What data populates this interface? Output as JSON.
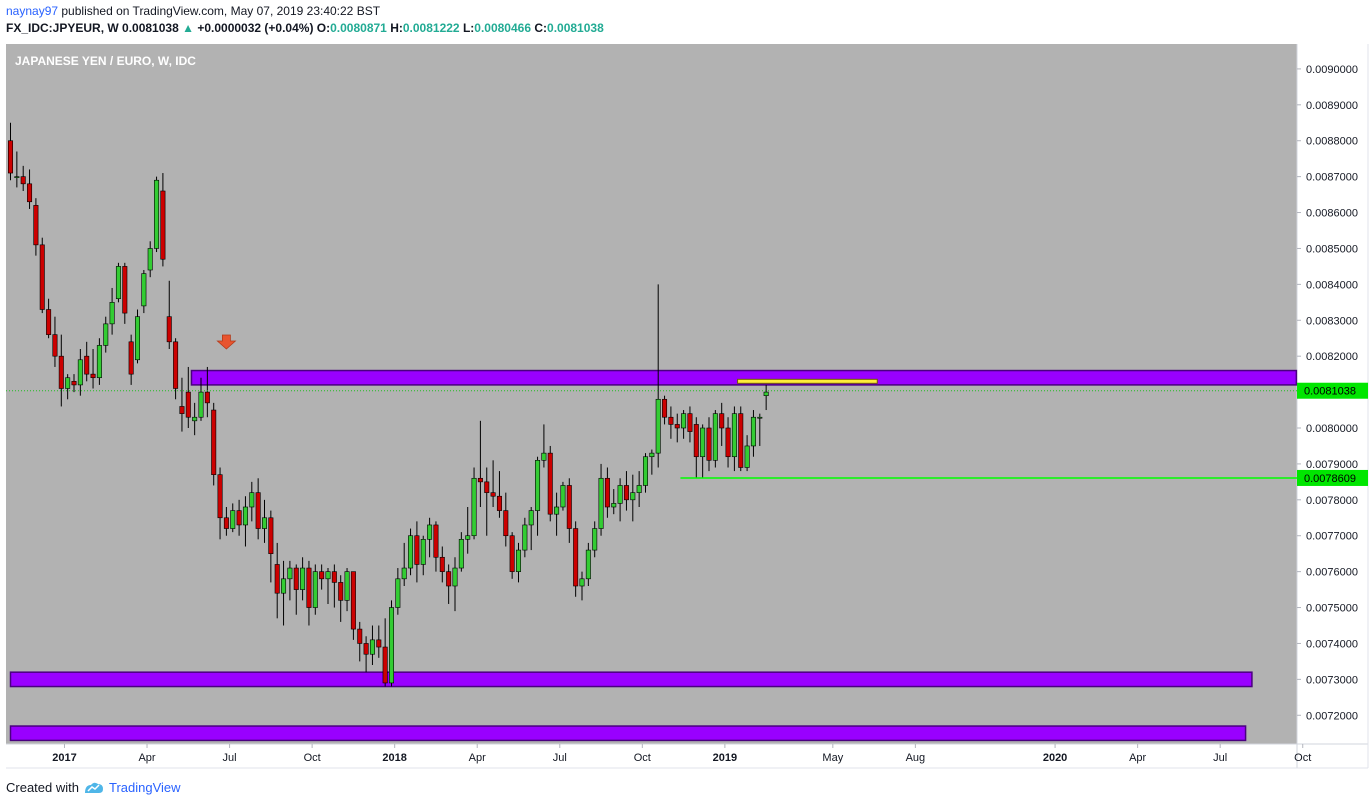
{
  "header": {
    "user": "naynay97",
    "published_text": " published on TradingView.com, May 07, 2019 23:40:22 BST",
    "symbol": "FX_IDC:JPYEUR, W",
    "last": "0.0081038",
    "change_arrow": "▲",
    "change": "+0.0000032 (+0.04%)",
    "o_label": "O:",
    "o_value": "0.0080871",
    "h_label": "H:",
    "h_value": "0.0081222",
    "l_label": "L:",
    "l_value": "0.0080466",
    "c_label": "C:",
    "c_value": "0.0081038"
  },
  "chart_data": {
    "type": "candlestick",
    "title": "JAPANESE YEN / EURO, W, IDC",
    "ylim": [
      0.00712,
      0.0091
    ],
    "y_ticks": [
      "0.0072000",
      "0.0073000",
      "0.0074000",
      "0.0075000",
      "0.0076000",
      "0.0077000",
      "0.0078000",
      "0.0079000",
      "0.0080000",
      "0.0081000",
      "0.0082000",
      "0.0083000",
      "0.0084000",
      "0.0085000",
      "0.0086000",
      "0.0087000",
      "0.0088000",
      "0.0089000",
      "0.0090000"
    ],
    "x_ticks": [
      {
        "label": "2017",
        "bold": true,
        "week": 8.5
      },
      {
        "label": "Apr",
        "bold": false,
        "week": 21.5
      },
      {
        "label": "Jul",
        "bold": false,
        "week": 34.5
      },
      {
        "label": "Oct",
        "bold": false,
        "week": 47.5
      },
      {
        "label": "2018",
        "bold": true,
        "week": 60.5
      },
      {
        "label": "Apr",
        "bold": false,
        "week": 73.5
      },
      {
        "label": "Jul",
        "bold": false,
        "week": 86.5
      },
      {
        "label": "Oct",
        "bold": false,
        "week": 99.5
      },
      {
        "label": "2019",
        "bold": true,
        "week": 112.5
      },
      {
        "label": "May",
        "bold": false,
        "week": 129.5
      },
      {
        "label": "Aug",
        "bold": false,
        "week": 142.5
      },
      {
        "label": "2020",
        "bold": true,
        "week": 164.5
      },
      {
        "label": "Apr",
        "bold": false,
        "week": 177.5
      },
      {
        "label": "Jul",
        "bold": false,
        "week": 190.5
      },
      {
        "label": "Oct",
        "bold": false,
        "week": 203.5
      }
    ],
    "last_price": "0.0081038",
    "support_price": "0.0078609",
    "zones": [
      {
        "low": 0.00812,
        "high": 0.00816,
        "week_start": 28.5,
        "week_end": 202.5
      },
      {
        "low": 0.00728,
        "high": 0.00732,
        "week_start": 0,
        "week_end": 195.5
      },
      {
        "low": 0.00713,
        "high": 0.00717,
        "week_start": 0,
        "week_end": 194.5
      }
    ],
    "yellow_zone": {
      "low": 0.00812,
      "high": 0.00813,
      "week_start": 114.5,
      "week_end": 136.5
    },
    "support_line_start_week": 105.5,
    "arrow": {
      "week": 34,
      "price": 0.00822
    },
    "candles": [
      [
        0.0088,
        0.00885,
        0.00869,
        0.00871
      ],
      [
        0.0087,
        0.00877,
        0.00867,
        0.0087
      ],
      [
        0.0087,
        0.00873,
        0.00866,
        0.00868
      ],
      [
        0.00868,
        0.00872,
        0.00861,
        0.00863
      ],
      [
        0.00862,
        0.00864,
        0.00848,
        0.00851
      ],
      [
        0.00851,
        0.00853,
        0.00832,
        0.00833
      ],
      [
        0.00833,
        0.00836,
        0.00825,
        0.00826
      ],
      [
        0.00826,
        0.00831,
        0.00817,
        0.0082
      ],
      [
        0.0082,
        0.00826,
        0.00806,
        0.00811
      ],
      [
        0.00811,
        0.00815,
        0.00808,
        0.00814
      ],
      [
        0.00813,
        0.00815,
        0.0081,
        0.00812
      ],
      [
        0.00812,
        0.00822,
        0.00809,
        0.00819
      ],
      [
        0.0082,
        0.00824,
        0.00813,
        0.00815
      ],
      [
        0.00815,
        0.00822,
        0.00811,
        0.00814
      ],
      [
        0.00814,
        0.00825,
        0.00812,
        0.00823
      ],
      [
        0.00823,
        0.00831,
        0.00821,
        0.00829
      ],
      [
        0.00829,
        0.00839,
        0.00826,
        0.00835
      ],
      [
        0.00836,
        0.00846,
        0.00835,
        0.00845
      ],
      [
        0.00845,
        0.00846,
        0.00829,
        0.00832
      ],
      [
        0.00824,
        0.00826,
        0.00812,
        0.00815
      ],
      [
        0.00819,
        0.00833,
        0.00818,
        0.00831
      ],
      [
        0.00834,
        0.00844,
        0.00832,
        0.00843
      ],
      [
        0.00844,
        0.00852,
        0.00842,
        0.0085
      ],
      [
        0.0085,
        0.0087,
        0.00849,
        0.00869
      ],
      [
        0.00866,
        0.00871,
        0.00845,
        0.00847
      ],
      [
        0.00831,
        0.00841,
        0.00822,
        0.00824
      ],
      [
        0.00824,
        0.00825,
        0.00808,
        0.00811
      ],
      [
        0.00806,
        0.00814,
        0.00799,
        0.00804
      ],
      [
        0.0081,
        0.00817,
        0.008,
        0.00803
      ],
      [
        0.00802,
        0.00807,
        0.00798,
        0.00803
      ],
      [
        0.00803,
        0.00814,
        0.00802,
        0.0081
      ],
      [
        0.0081,
        0.00817,
        0.00803,
        0.00807
      ],
      [
        0.00805,
        0.00807,
        0.00784,
        0.00787
      ],
      [
        0.00787,
        0.00789,
        0.00769,
        0.00775
      ],
      [
        0.00775,
        0.00778,
        0.0077,
        0.00772
      ],
      [
        0.00772,
        0.00779,
        0.00771,
        0.00777
      ],
      [
        0.00777,
        0.0078,
        0.0077,
        0.00773
      ],
      [
        0.00773,
        0.00781,
        0.00767,
        0.00778
      ],
      [
        0.00778,
        0.00785,
        0.00774,
        0.00782
      ],
      [
        0.00782,
        0.00786,
        0.00769,
        0.00772
      ],
      [
        0.00772,
        0.0078,
        0.00768,
        0.00775
      ],
      [
        0.00775,
        0.00777,
        0.00757,
        0.00765
      ],
      [
        0.00762,
        0.00768,
        0.00747,
        0.00754
      ],
      [
        0.00754,
        0.00763,
        0.00745,
        0.00758
      ],
      [
        0.00758,
        0.00763,
        0.00752,
        0.00761
      ],
      [
        0.00761,
        0.00762,
        0.00748,
        0.00755
      ],
      [
        0.00755,
        0.00764,
        0.00752,
        0.00761
      ],
      [
        0.00761,
        0.00763,
        0.00745,
        0.0075
      ],
      [
        0.0075,
        0.00762,
        0.00748,
        0.0076
      ],
      [
        0.0076,
        0.00762,
        0.00755,
        0.00758
      ],
      [
        0.00758,
        0.00761,
        0.00751,
        0.0076
      ],
      [
        0.0076,
        0.00762,
        0.0075,
        0.00757
      ],
      [
        0.00757,
        0.00759,
        0.00746,
        0.00752
      ],
      [
        0.00752,
        0.00761,
        0.00749,
        0.0076
      ],
      [
        0.0076,
        0.0076,
        0.00741,
        0.00744
      ],
      [
        0.00744,
        0.00746,
        0.00735,
        0.0074
      ],
      [
        0.0074,
        0.00742,
        0.00732,
        0.00737
      ],
      [
        0.00737,
        0.00745,
        0.00734,
        0.00741
      ],
      [
        0.00741,
        0.00745,
        0.00736,
        0.00739
      ],
      [
        0.00739,
        0.00747,
        0.00728,
        0.00729
      ],
      [
        0.00729,
        0.00752,
        0.00728,
        0.0075
      ],
      [
        0.0075,
        0.00761,
        0.00748,
        0.00758
      ],
      [
        0.00758,
        0.00768,
        0.00756,
        0.00761
      ],
      [
        0.00761,
        0.00772,
        0.00759,
        0.0077
      ],
      [
        0.0077,
        0.00774,
        0.00757,
        0.00762
      ],
      [
        0.00762,
        0.0077,
        0.00759,
        0.00769
      ],
      [
        0.00769,
        0.00775,
        0.00764,
        0.00773
      ],
      [
        0.00773,
        0.00774,
        0.0076,
        0.00764
      ],
      [
        0.00764,
        0.00767,
        0.00757,
        0.0076
      ],
      [
        0.0076,
        0.00762,
        0.00751,
        0.00756
      ],
      [
        0.00756,
        0.00764,
        0.00749,
        0.00761
      ],
      [
        0.00761,
        0.00771,
        0.0076,
        0.00769
      ],
      [
        0.00769,
        0.00778,
        0.00765,
        0.0077
      ],
      [
        0.0077,
        0.00789,
        0.00769,
        0.00786
      ],
      [
        0.00786,
        0.00802,
        0.00778,
        0.00785
      ],
      [
        0.00785,
        0.00789,
        0.0077,
        0.00782
      ],
      [
        0.00782,
        0.00791,
        0.00778,
        0.00781
      ],
      [
        0.00781,
        0.00788,
        0.00775,
        0.00777
      ],
      [
        0.00777,
        0.00782,
        0.00767,
        0.0077
      ],
      [
        0.0077,
        0.00771,
        0.00758,
        0.0076
      ],
      [
        0.0076,
        0.00768,
        0.00757,
        0.00766
      ],
      [
        0.00766,
        0.00775,
        0.00764,
        0.00773
      ],
      [
        0.00773,
        0.00778,
        0.00766,
        0.00777
      ],
      [
        0.00777,
        0.00792,
        0.0077,
        0.00791
      ],
      [
        0.00791,
        0.00801,
        0.00789,
        0.00793
      ],
      [
        0.00793,
        0.00795,
        0.00774,
        0.00776
      ],
      [
        0.00776,
        0.00782,
        0.0077,
        0.00778
      ],
      [
        0.00778,
        0.00785,
        0.00777,
        0.00784
      ],
      [
        0.00784,
        0.00786,
        0.00768,
        0.00772
      ],
      [
        0.00772,
        0.00774,
        0.00753,
        0.00756
      ],
      [
        0.00756,
        0.0076,
        0.00752,
        0.00758
      ],
      [
        0.00758,
        0.00768,
        0.00756,
        0.00766
      ],
      [
        0.00766,
        0.00774,
        0.00764,
        0.00772
      ],
      [
        0.00772,
        0.0079,
        0.0077,
        0.00786
      ],
      [
        0.00786,
        0.00789,
        0.00775,
        0.00778
      ],
      [
        0.00778,
        0.00783,
        0.00776,
        0.00779
      ],
      [
        0.00779,
        0.00786,
        0.00774,
        0.00784
      ],
      [
        0.00784,
        0.00788,
        0.00777,
        0.0078
      ],
      [
        0.0078,
        0.00787,
        0.00774,
        0.00782
      ],
      [
        0.00782,
        0.00788,
        0.00778,
        0.00784
      ],
      [
        0.00784,
        0.00793,
        0.00782,
        0.00792
      ],
      [
        0.00792,
        0.00794,
        0.00787,
        0.00793
      ],
      [
        0.00793,
        0.0084,
        0.00789,
        0.00808
      ],
      [
        0.00808,
        0.00809,
        0.00801,
        0.00803
      ],
      [
        0.00803,
        0.00806,
        0.00797,
        0.00801
      ],
      [
        0.00801,
        0.00804,
        0.00796,
        0.008
      ],
      [
        0.008,
        0.00805,
        0.00797,
        0.00804
      ],
      [
        0.00804,
        0.00806,
        0.00796,
        0.00799
      ],
      [
        0.00801,
        0.00803,
        0.00786,
        0.00792
      ],
      [
        0.00792,
        0.00801,
        0.00786,
        0.008
      ],
      [
        0.008,
        0.00803,
        0.00788,
        0.00791
      ],
      [
        0.00791,
        0.00805,
        0.00789,
        0.00804
      ],
      [
        0.00804,
        0.00807,
        0.00795,
        0.008
      ],
      [
        0.008,
        0.00803,
        0.00789,
        0.00792
      ],
      [
        0.00792,
        0.00806,
        0.00788,
        0.00804
      ],
      [
        0.00804,
        0.00806,
        0.00788,
        0.00789
      ],
      [
        0.00789,
        0.00798,
        0.00788,
        0.00795
      ],
      [
        0.00795,
        0.00805,
        0.00792,
        0.00803
      ],
      [
        0.00803,
        0.00804,
        0.00795,
        0.00803
      ],
      [
        0.00809,
        0.00812,
        0.00805,
        0.0081
      ]
    ]
  },
  "footer": {
    "created_with": "Created with",
    "brand": "TradingView"
  }
}
